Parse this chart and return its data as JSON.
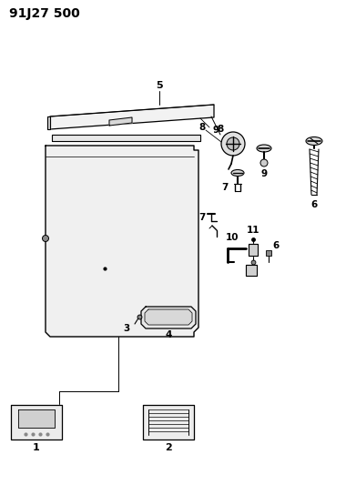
{
  "title": "91J27 500",
  "bg_color": "#ffffff",
  "line_color": "#000000",
  "title_fontsize": 10,
  "label_fontsize": 8,
  "fig_w": 3.91,
  "fig_h": 5.33,
  "dpi": 100
}
